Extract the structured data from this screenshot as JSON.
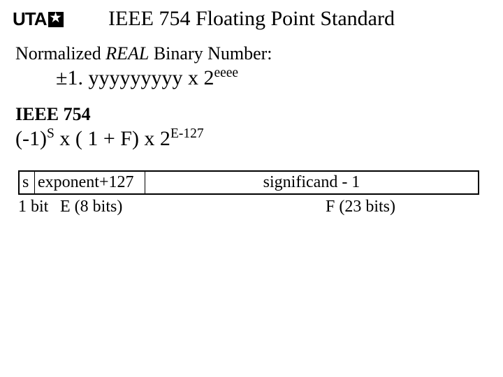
{
  "logo_text": "UTA",
  "title": "IEEE 754 Floating Point Standard",
  "norm_label_prefix": "Normalized ",
  "norm_label_real": "REAL",
  "norm_label_suffix": " Binary Number:",
  "formula1_prefix": "±1. yyyyyyyyy  x  2",
  "formula1_sup": "eeee",
  "heading2": "IEEE 754",
  "formula2_a": "(-1)",
  "formula2_sup1": "S",
  "formula2_b": " x  ( 1 + F)  x  2",
  "formula2_sup2": "E-127",
  "layout": {
    "s": "s",
    "exp": "exponent+127",
    "sig": "significand - 1",
    "s_label": "1 bit",
    "exp_label": "E (8 bits)",
    "sig_label": "F (23 bits)"
  },
  "colors": {
    "background": "#ffffff",
    "text": "#000000",
    "border": "#000000"
  }
}
